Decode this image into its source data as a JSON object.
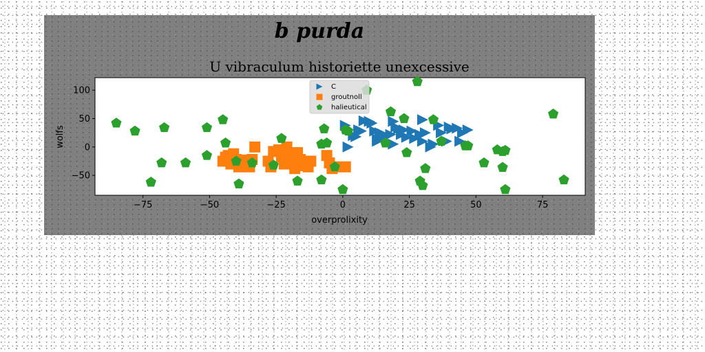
{
  "figure": {
    "suptitle": "b purda",
    "background": "#808080",
    "page_background": "#ffffff"
  },
  "chart_data": {
    "type": "scatter",
    "title": "U vibraculum historiette unexcessive",
    "xlabel": "overprolixity",
    "ylabel": "wolfs",
    "xlim": [
      -93,
      91
    ],
    "ylim": [
      -85,
      122
    ],
    "xticks": [
      -75,
      -50,
      -25,
      0,
      25,
      50,
      75
    ],
    "yticks": [
      -50,
      0,
      50,
      100
    ],
    "x_tick_labels": [
      "−75",
      "−50",
      "−25",
      "0",
      "25",
      "50",
      "75"
    ],
    "y_tick_labels": [
      "−50",
      "0",
      "50",
      "100"
    ],
    "grid": false,
    "legend_position": "upper center",
    "series": [
      {
        "name": "C",
        "marker": "triangle-right",
        "color": "#1f77b4",
        "points": [
          [
            1,
            38
          ],
          [
            2,
            0
          ],
          [
            4,
            20
          ],
          [
            5,
            18
          ],
          [
            6,
            30
          ],
          [
            7,
            28
          ],
          [
            8,
            46
          ],
          [
            10,
            45
          ],
          [
            11,
            42
          ],
          [
            12,
            28
          ],
          [
            13,
            10
          ],
          [
            13,
            14
          ],
          [
            14,
            25
          ],
          [
            15,
            23
          ],
          [
            16,
            18
          ],
          [
            18,
            22
          ],
          [
            19,
            45
          ],
          [
            19,
            5
          ],
          [
            20,
            35
          ],
          [
            21,
            32
          ],
          [
            22,
            22
          ],
          [
            23,
            30
          ],
          [
            24,
            17
          ],
          [
            26,
            28
          ],
          [
            27,
            15
          ],
          [
            29,
            22
          ],
          [
            30,
            48
          ],
          [
            30,
            10
          ],
          [
            31,
            25
          ],
          [
            33,
            0
          ],
          [
            34,
            5
          ],
          [
            36,
            38
          ],
          [
            37,
            25
          ],
          [
            39,
            10
          ],
          [
            40,
            35
          ],
          [
            41,
            32
          ],
          [
            43,
            33
          ],
          [
            44,
            10
          ],
          [
            45,
            25
          ],
          [
            47,
            30
          ]
        ]
      },
      {
        "name": "groutnoll",
        "marker": "square",
        "color": "#ff7f0e",
        "points": [
          [
            -45,
            -25
          ],
          [
            -44,
            -18
          ],
          [
            -43,
            -15
          ],
          [
            -42,
            -30
          ],
          [
            -41,
            -12
          ],
          [
            -40,
            -22
          ],
          [
            -39,
            -35
          ],
          [
            -38,
            -30
          ],
          [
            -36,
            -23
          ],
          [
            -35,
            -35
          ],
          [
            -34,
            -22
          ],
          [
            -33,
            0
          ],
          [
            -28,
            -25
          ],
          [
            -27,
            -35
          ],
          [
            -26,
            -8
          ],
          [
            -24,
            -5
          ],
          [
            -23,
            -18
          ],
          [
            -22,
            -30
          ],
          [
            -21,
            0
          ],
          [
            -20,
            -12
          ],
          [
            -19,
            -25
          ],
          [
            -18,
            -38
          ],
          [
            -17,
            -10
          ],
          [
            -16,
            -22
          ],
          [
            -15,
            -33
          ],
          [
            -13,
            -35
          ],
          [
            -12,
            -25
          ],
          [
            -6,
            -15
          ],
          [
            -5,
            -28
          ],
          [
            -4,
            -38
          ],
          [
            -3,
            -35
          ],
          [
            1,
            -35
          ]
        ]
      },
      {
        "name": "halieutical",
        "marker": "pentagon",
        "color": "#2ca02c",
        "points": [
          [
            -85,
            42
          ],
          [
            -78,
            28
          ],
          [
            -72,
            -62
          ],
          [
            -68,
            -28
          ],
          [
            -67,
            34
          ],
          [
            -59,
            -28
          ],
          [
            -51,
            34
          ],
          [
            -51,
            -15
          ],
          [
            -45,
            48
          ],
          [
            -44,
            7
          ],
          [
            -40,
            -25
          ],
          [
            -39,
            -65
          ],
          [
            -34,
            -28
          ],
          [
            -26,
            -32
          ],
          [
            -23,
            15
          ],
          [
            -17,
            -60
          ],
          [
            -8,
            -58
          ],
          [
            -8,
            5
          ],
          [
            -7,
            32
          ],
          [
            -6,
            7
          ],
          [
            -3,
            -35
          ],
          [
            0,
            -75
          ],
          [
            1,
            30
          ],
          [
            2,
            28
          ],
          [
            9,
            100
          ],
          [
            16,
            7
          ],
          [
            18,
            62
          ],
          [
            23,
            50
          ],
          [
            24,
            -10
          ],
          [
            28,
            115
          ],
          [
            29,
            -60
          ],
          [
            30,
            -68
          ],
          [
            31,
            -38
          ],
          [
            34,
            48
          ],
          [
            37,
            10
          ],
          [
            46,
            2
          ],
          [
            47,
            2
          ],
          [
            53,
            -28
          ],
          [
            58,
            -5
          ],
          [
            60,
            -8
          ],
          [
            60,
            -36
          ],
          [
            61,
            -6
          ],
          [
            61,
            -75
          ],
          [
            79,
            58
          ],
          [
            83,
            -58
          ]
        ]
      }
    ]
  }
}
